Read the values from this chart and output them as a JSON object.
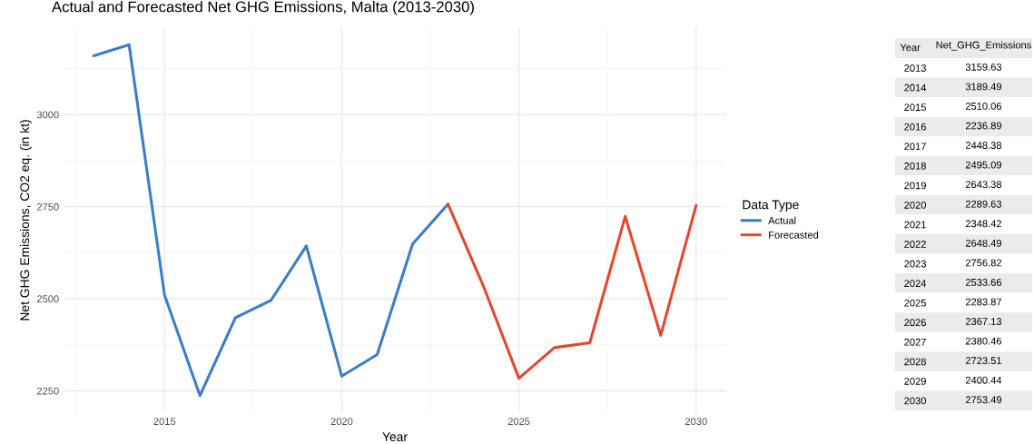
{
  "chart_data": [
    {
      "type": "line",
      "title": "Actual and Forecasted Net GHG Emissions, Malta (2013-2030)",
      "xlabel": "Year",
      "ylabel": "Net GHG Emissions, CO2 eq. (in kt)",
      "legend_title": "Data Type",
      "series": [
        {
          "name": "Actual",
          "color": "#3a7dc9",
          "x": [
            2013,
            2014,
            2015,
            2016,
            2017,
            2018,
            2019,
            2020,
            2021,
            2022,
            2023
          ],
          "values": [
            3159.63,
            3189.49,
            2510.06,
            2236.89,
            2448.38,
            2495.09,
            2643.38,
            2289.63,
            2348.42,
            2648.49,
            2756.82
          ]
        },
        {
          "name": "Forecasted",
          "color": "#e5462f",
          "x": [
            2023,
            2024,
            2025,
            2026,
            2027,
            2028,
            2029,
            2030
          ],
          "values": [
            2756.82,
            2533.66,
            2283.87,
            2367.13,
            2380.46,
            2723.51,
            2400.44,
            2753.49
          ]
        }
      ],
      "xlim": [
        2012.15,
        2030.85
      ],
      "xticks": [
        2015,
        2020,
        2025,
        2030
      ],
      "ylim": [
        2189.3,
        3237.1
      ],
      "yticks": [
        2250,
        2500,
        2750,
        3000
      ],
      "grid": true,
      "legend": "right"
    },
    {
      "type": "heatmap",
      "annotations": [
        "Year"
      ],
      "data_labels": true,
      "categories": [
        "Net_GHG_Emissions"
      ],
      "y_categories": [
        "2013",
        "2014",
        "2015",
        "2016",
        "2017",
        "2018",
        "2019",
        "2020",
        "2021",
        "2022",
        "2023",
        "2024",
        "2025",
        "2026",
        "2027",
        "2028",
        "2029",
        "2030"
      ],
      "cells": [
        [
          3159.63
        ],
        [
          3189.49
        ],
        [
          2510.06
        ],
        [
          2236.89
        ],
        [
          2448.38
        ],
        [
          2495.09
        ],
        [
          2643.38
        ],
        [
          2289.63
        ],
        [
          2348.42
        ],
        [
          2648.49
        ],
        [
          2756.82
        ],
        [
          2533.66
        ],
        [
          2283.87
        ],
        [
          2367.13
        ],
        [
          2380.46
        ],
        [
          2723.51
        ],
        [
          2400.44
        ],
        [
          2753.49
        ]
      ]
    }
  ]
}
